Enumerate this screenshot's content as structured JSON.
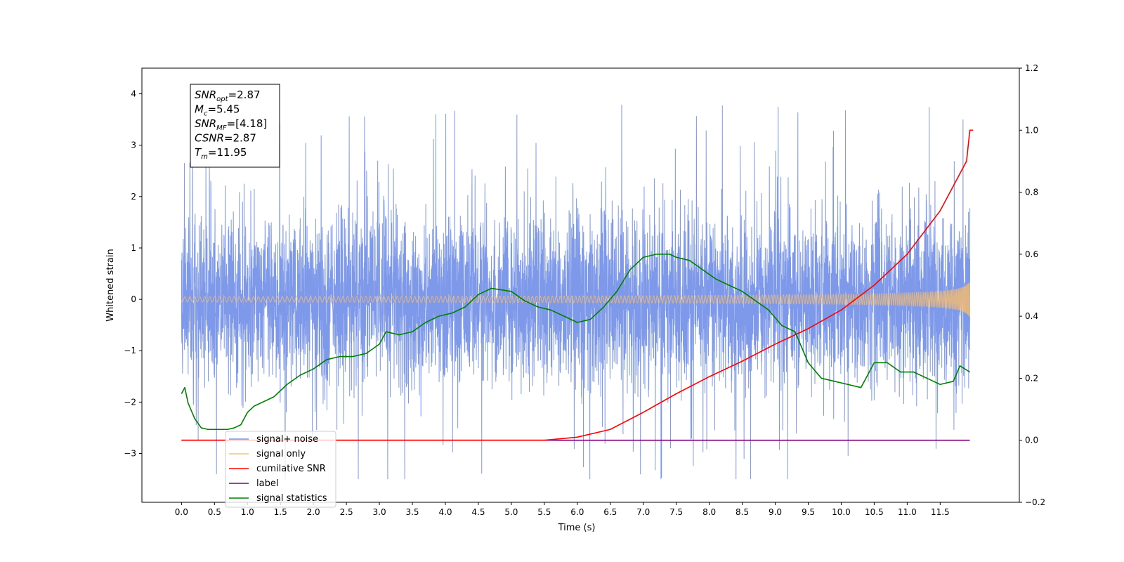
{
  "chart_data": {
    "type": "line",
    "xlabel": "Time (s)",
    "ylabel": "Whitened strain",
    "xlim": [
      -0.6,
      12.7
    ],
    "ylim": [
      -3.95,
      4.5
    ],
    "y2lim": [
      -0.2,
      1.2
    ],
    "x_ticks": [
      "0.0",
      "0.5",
      "1.0",
      "1.5",
      "2.0",
      "2.5",
      "3.0",
      "3.5",
      "4.0",
      "4.5",
      "5.0",
      "5.5",
      "6.0",
      "6.5",
      "7.0",
      "7.5",
      "8.0",
      "8.5",
      "9.0",
      "9.5",
      "10.0",
      "10.5",
      "11.0",
      "11.5"
    ],
    "y_ticks": [
      "4",
      "3",
      "2",
      "1",
      "0",
      "−1",
      "−2",
      "−3"
    ],
    "y2_ticks": [
      "1.2",
      "1.0",
      "0.8",
      "0.6",
      "0.4",
      "0.2",
      "0.0",
      "−0.2"
    ],
    "grid": false,
    "legend_position": "lower-left",
    "annotation": {
      "lines": [
        {
          "sym": "SNR",
          "sub": "opt",
          "value": "=2.87"
        },
        {
          "sym": "M",
          "sub": "c",
          "value": "=5.45"
        },
        {
          "sym": "SNR",
          "sub": "MF",
          "value": "=[4.18]"
        },
        {
          "sym": "CSNR",
          "sub": "",
          "value": "=2.87"
        },
        {
          "sym": "T",
          "sub": "m",
          "value": "=11.95"
        }
      ]
    },
    "series": [
      {
        "name": "signal+ noise",
        "color": "#7793e8",
        "axis": "left",
        "style": "noise band ~N(0,0.8) with spikes",
        "t_range": [
          0.0,
          11.95
        ]
      },
      {
        "name": "signal only",
        "color": "#ffbf66",
        "axis": "left",
        "style": "chirp with growing amplitude",
        "amplitude_end": 0.3,
        "t_range": [
          0.0,
          11.95
        ]
      },
      {
        "name": "cumilative SNR",
        "color": "#ff0000",
        "axis": "right",
        "x": [
          0.0,
          5.5,
          6.0,
          6.5,
          7.0,
          7.5,
          8.0,
          8.5,
          9.0,
          9.5,
          10.0,
          10.5,
          11.0,
          11.5,
          11.9,
          11.95,
          12.0
        ],
        "y": [
          0.0,
          0.0,
          0.01,
          0.035,
          0.09,
          0.15,
          0.205,
          0.255,
          0.31,
          0.36,
          0.42,
          0.5,
          0.6,
          0.74,
          0.9,
          1.0,
          1.0
        ]
      },
      {
        "name": "label",
        "color": "#800080",
        "axis": "right",
        "x": [
          0.0,
          11.95
        ],
        "y": [
          0.0,
          0.0
        ]
      },
      {
        "name": "signal statistics",
        "color": "#008000",
        "axis": "right",
        "x": [
          0.0,
          0.05,
          0.1,
          0.2,
          0.3,
          0.4,
          0.5,
          0.7,
          0.8,
          0.9,
          1.0,
          1.1,
          1.2,
          1.4,
          1.6,
          1.8,
          2.0,
          2.2,
          2.4,
          2.6,
          2.8,
          3.0,
          3.1,
          3.3,
          3.5,
          3.7,
          3.9,
          4.1,
          4.3,
          4.5,
          4.7,
          5.0,
          5.2,
          5.4,
          5.6,
          5.8,
          6.0,
          6.2,
          6.4,
          6.6,
          6.8,
          7.0,
          7.2,
          7.4,
          7.5,
          7.7,
          7.9,
          8.1,
          8.3,
          8.5,
          8.7,
          8.9,
          9.1,
          9.3,
          9.5,
          9.7,
          9.9,
          10.1,
          10.3,
          10.5,
          10.7,
          10.9,
          11.1,
          11.3,
          11.5,
          11.7,
          11.8,
          11.95
        ],
        "y": [
          0.15,
          0.17,
          0.12,
          0.07,
          0.04,
          0.035,
          0.035,
          0.035,
          0.04,
          0.05,
          0.09,
          0.11,
          0.12,
          0.14,
          0.18,
          0.21,
          0.23,
          0.26,
          0.27,
          0.27,
          0.28,
          0.31,
          0.35,
          0.34,
          0.35,
          0.38,
          0.4,
          0.41,
          0.43,
          0.47,
          0.49,
          0.48,
          0.45,
          0.43,
          0.42,
          0.4,
          0.38,
          0.39,
          0.43,
          0.48,
          0.55,
          0.59,
          0.6,
          0.6,
          0.59,
          0.58,
          0.55,
          0.52,
          0.5,
          0.48,
          0.45,
          0.42,
          0.37,
          0.35,
          0.25,
          0.2,
          0.19,
          0.18,
          0.17,
          0.25,
          0.25,
          0.22,
          0.22,
          0.2,
          0.18,
          0.19,
          0.24,
          0.22
        ]
      }
    ]
  }
}
